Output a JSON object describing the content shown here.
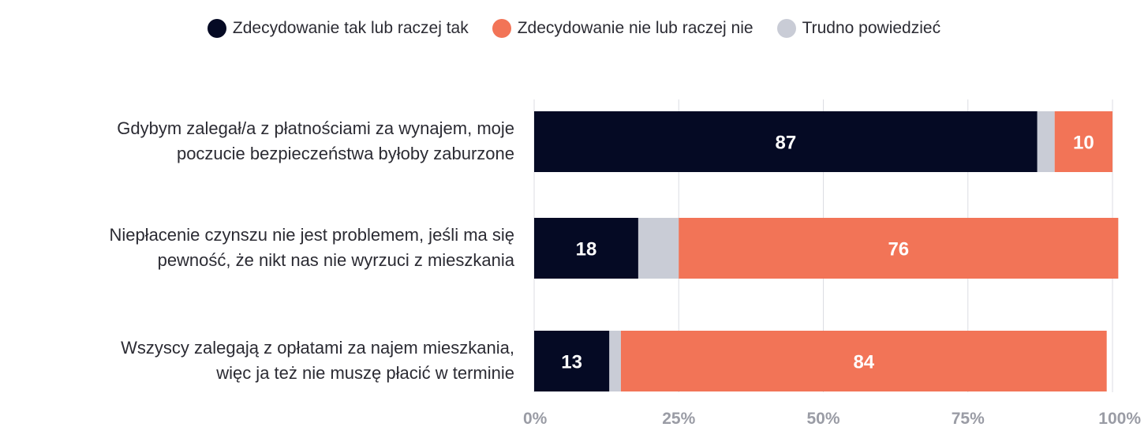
{
  "chart_data": {
    "type": "bar",
    "orientation": "horizontal",
    "stacked": true,
    "categories": [
      "Gdybym zalegał/a z płatnościami za wynajem, moje poczucie bezpieczeństwa byłoby zaburzone",
      "Niepłacenie czynszu nie jest problemem, jeśli ma się pewność, że nikt nas nie wyrzuci z mieszkania",
      "Wszyscy zalegają z opłatami za najem mieszkania, więc ja też nie muszę płacić w terminie"
    ],
    "category_lines": [
      [
        "Gdybym zalegał/a z płatnościami za wynajem, moje",
        "poczucie bezpieczeństwa byłoby zaburzone"
      ],
      [
        "Niepłacenie czynszu nie jest problemem, jeśli ma się",
        "pewność, że nikt nas nie wyrzuci z mieszkania"
      ],
      [
        "Wszyscy zalegają z opłatami za najem mieszkania,",
        "więc ja też nie muszę płacić w terminie"
      ]
    ],
    "series": [
      {
        "name": "Zdecydowanie tak lub raczej tak",
        "color": "#050a24",
        "values": [
          87,
          18,
          13
        ]
      },
      {
        "name": "Trudno powiedzieć",
        "color": "#c9ccd6",
        "values": [
          3,
          7,
          2
        ]
      },
      {
        "name": "Zdecydowanie nie lub raczej nie",
        "color": "#f27457",
        "values": [
          10,
          76,
          84
        ]
      }
    ],
    "legend_order": [
      0,
      2,
      1
    ],
    "labeled_series": [
      0,
      2
    ],
    "x_ticks": [
      "0%",
      "25%",
      "50%",
      "75%",
      "100%"
    ],
    "x_tick_values": [
      0,
      25,
      50,
      75,
      100
    ],
    "xlim": [
      0,
      100
    ],
    "grid": true,
    "legend_position": "top-center",
    "title": "",
    "xlabel": "",
    "ylabel": ""
  }
}
